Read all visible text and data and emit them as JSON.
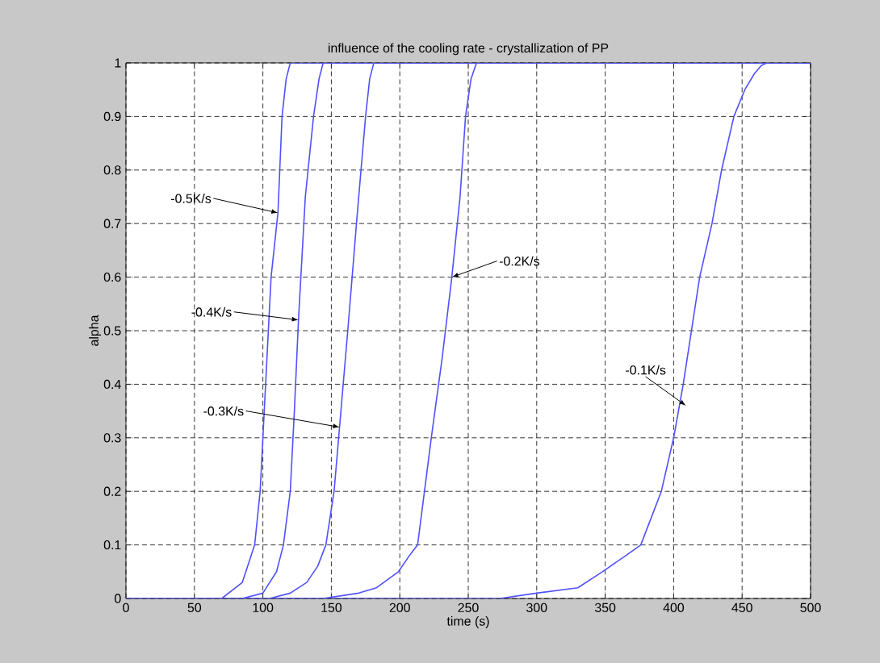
{
  "chart_data": {
    "type": "line",
    "title": "influence of the cooling rate - crystallization of PP",
    "xlabel": "time (s)",
    "ylabel": "alpha",
    "xlim": [
      0,
      500
    ],
    "xticks": [
      0,
      50,
      100,
      150,
      200,
      250,
      300,
      350,
      400,
      450,
      500
    ],
    "ylim": [
      0,
      1
    ],
    "yticks": [
      0,
      0.1,
      0.2,
      0.3,
      0.4,
      0.5,
      0.6,
      0.7,
      0.8,
      0.9,
      1
    ],
    "grid": true,
    "marker": "none",
    "line_style": "solid",
    "series": [
      {
        "color": "#5050ff",
        "x": [
          0,
          70,
          85,
          94,
          98,
          102,
          106,
          111,
          114,
          117,
          120,
          500
        ],
        "values": [
          0,
          0,
          0.03,
          0.1,
          0.2,
          0.4,
          0.6,
          0.72,
          0.9,
          0.97,
          1,
          1
        ]
      },
      {
        "color": "#5050ff",
        "x": [
          0,
          85,
          100,
          110,
          115,
          120,
          123,
          126,
          131,
          137,
          141,
          144,
          500
        ],
        "values": [
          0,
          0,
          0.01,
          0.05,
          0.1,
          0.2,
          0.35,
          0.52,
          0.75,
          0.9,
          0.97,
          1,
          1
        ]
      },
      {
        "color": "#5050ff",
        "x": [
          0,
          105,
          120,
          132,
          140,
          146,
          152,
          156,
          162,
          169,
          175,
          178,
          181,
          500
        ],
        "values": [
          0,
          0,
          0.01,
          0.03,
          0.06,
          0.1,
          0.2,
          0.32,
          0.5,
          0.72,
          0.9,
          0.97,
          1,
          1
        ]
      },
      {
        "color": "#5050ff",
        "x": [
          0,
          144,
          170,
          183,
          199,
          207,
          213,
          223,
          231,
          238,
          244,
          248,
          252,
          256,
          500
        ],
        "values": [
          0,
          0,
          0.01,
          0.02,
          0.05,
          0.08,
          0.1,
          0.3,
          0.45,
          0.6,
          0.75,
          0.9,
          0.97,
          1,
          1
        ]
      },
      {
        "color": "#5050ff",
        "x": [
          0,
          273,
          300,
          330,
          348,
          365,
          376,
          391,
          400,
          407,
          419,
          428,
          435,
          444,
          452,
          459,
          464,
          468,
          500
        ],
        "values": [
          0,
          0,
          0.01,
          0.02,
          0.05,
          0.08,
          0.1,
          0.2,
          0.3,
          0.4,
          0.6,
          0.7,
          0.8,
          0.9,
          0.95,
          0.98,
          0.995,
          1,
          1
        ]
      }
    ],
    "annotations": [
      {
        "text": "-0.5K/s",
        "x": 111,
        "y": 0.72
      },
      {
        "text": "-0.4K/s",
        "x": 126,
        "y": 0.52
      },
      {
        "text": "-0.3K/s",
        "x": 156,
        "y": 0.32
      },
      {
        "text": "-0.2K/s",
        "x": 238,
        "y": 0.6
      },
      {
        "text": "-0.1K/s",
        "x": 409,
        "y": 0.36
      }
    ]
  }
}
